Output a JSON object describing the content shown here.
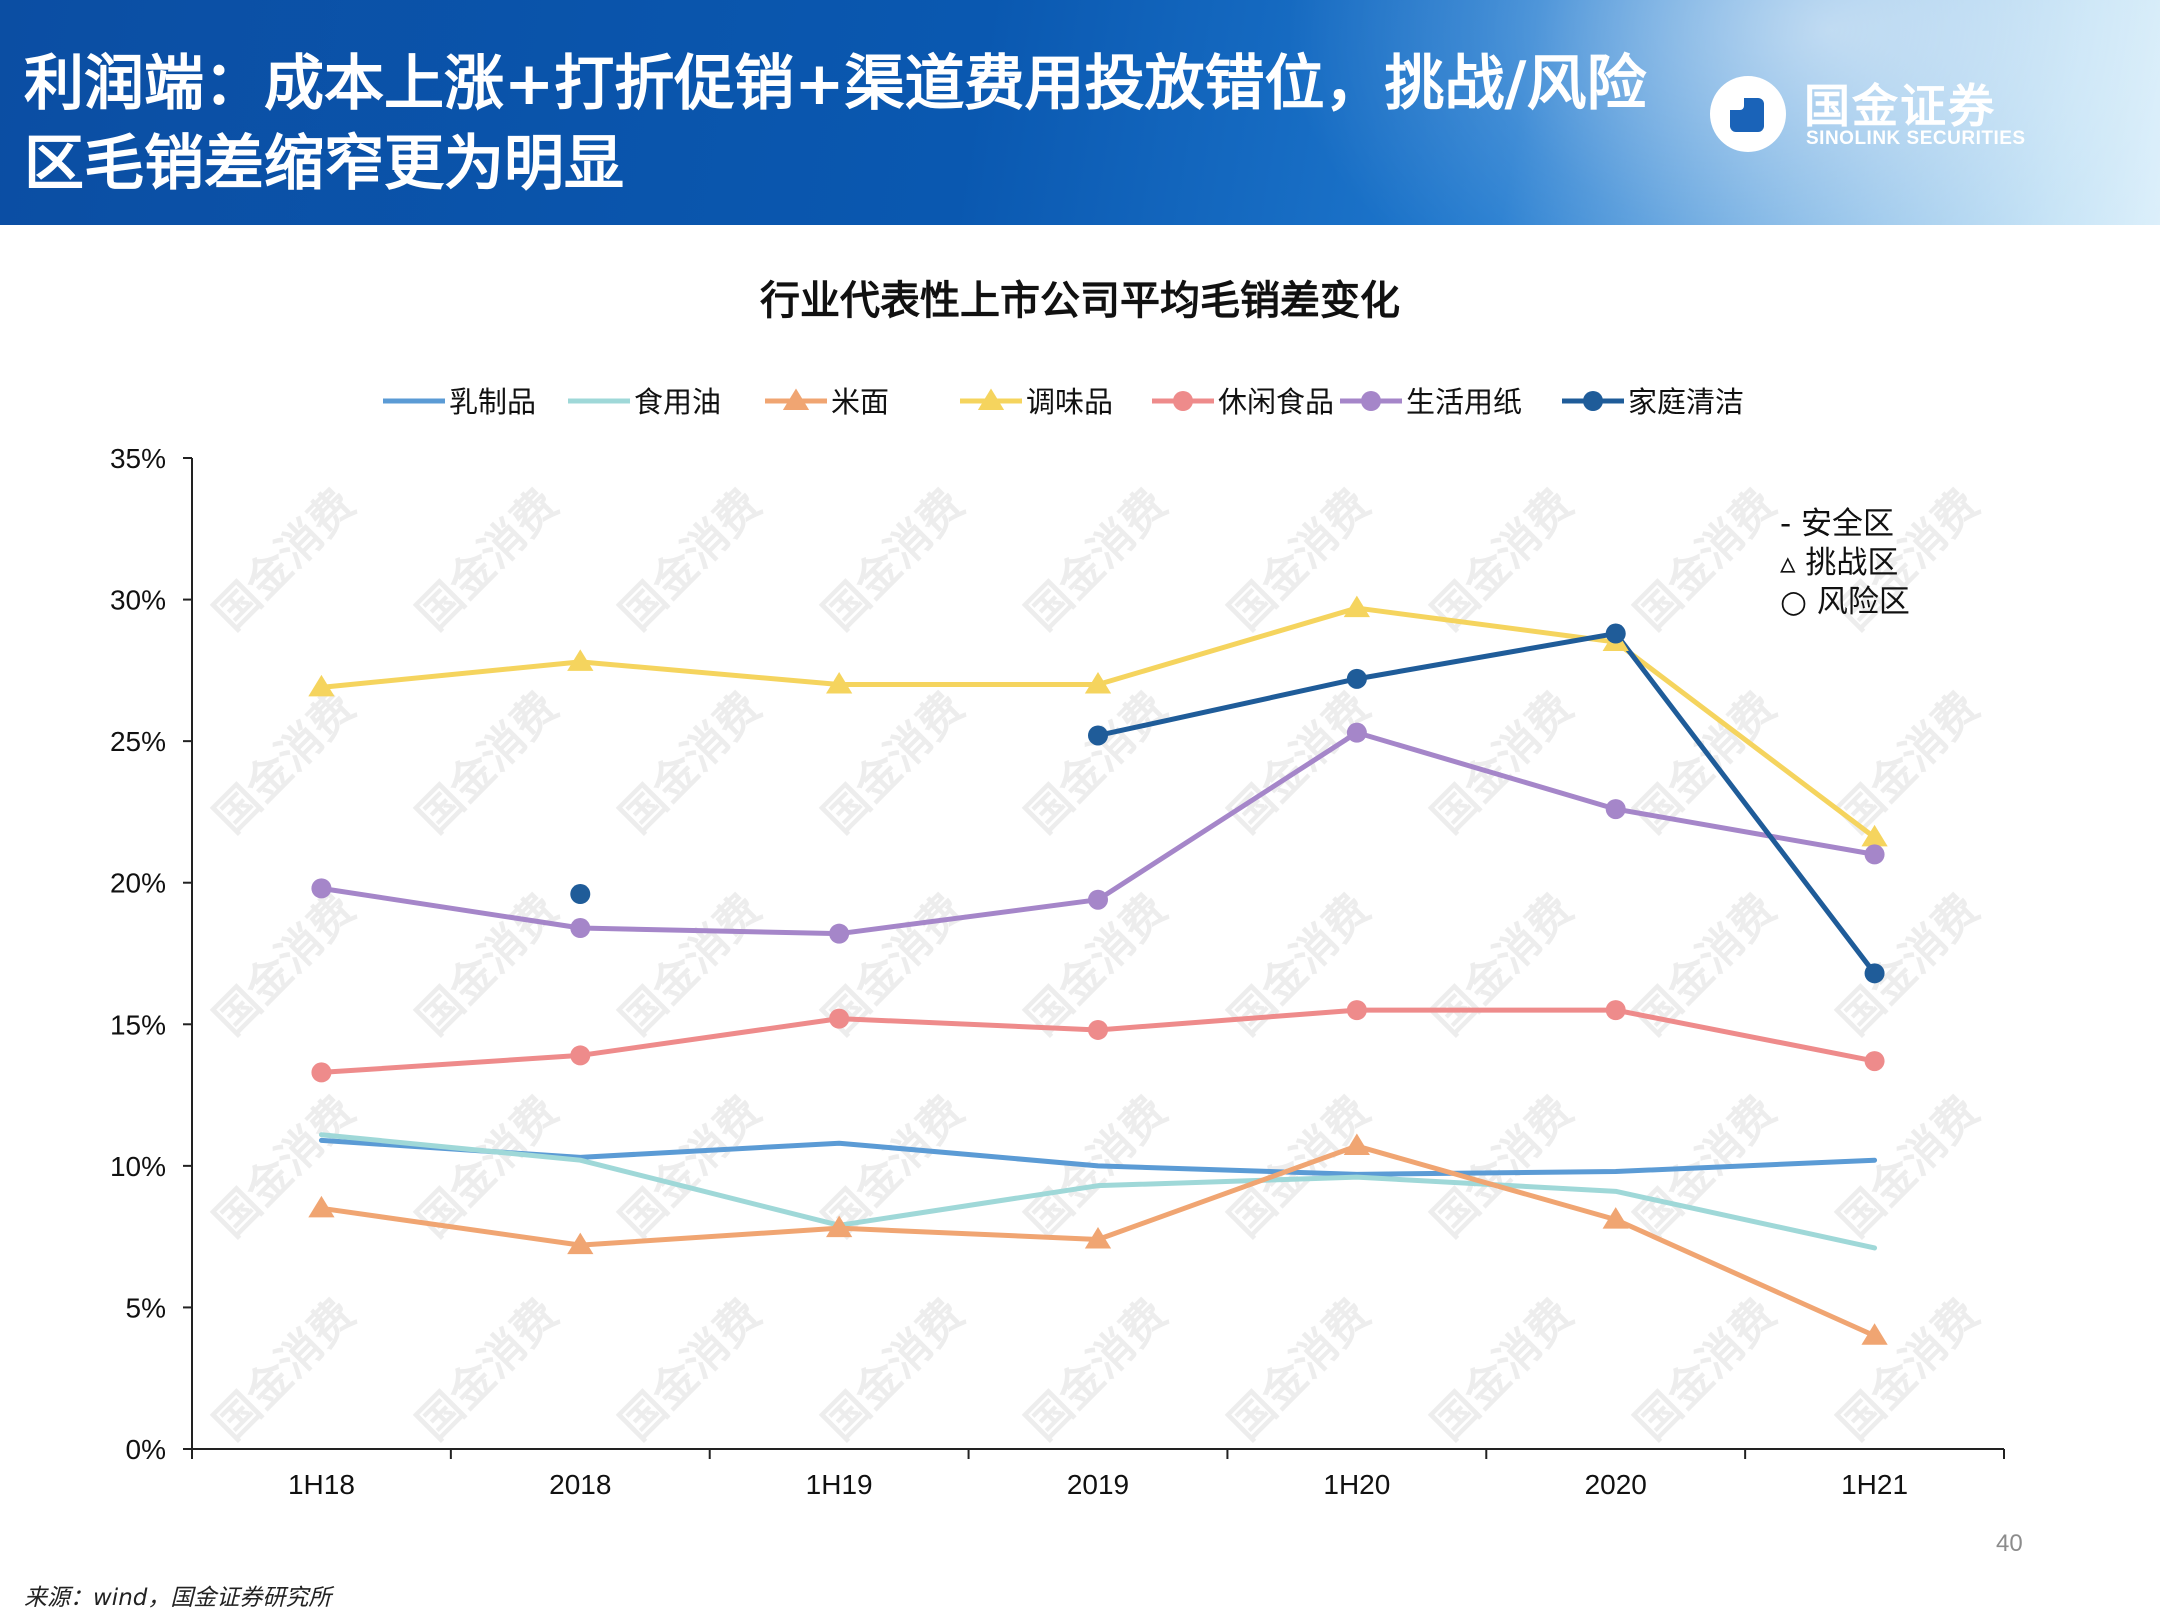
{
  "header": {
    "title": "利润端：成本上涨+打折促销+渠道费用投放错位，挑战/风险区毛销差缩窄更为明显",
    "logo_cn": "国金证券",
    "logo_en": "SINOLINK SECURITIES"
  },
  "watermark": "国金消费",
  "page_number": "40",
  "source": "来源：wind，国金证券研究所",
  "chart_data": {
    "type": "line",
    "title": "行业代表性上市公司平均毛销差变化",
    "categories": [
      "1H18",
      "2018",
      "1H19",
      "2019",
      "1H20",
      "2020",
      "1H21"
    ],
    "y_ticks": [
      "0%",
      "5%",
      "10%",
      "15%",
      "20%",
      "25%",
      "30%",
      "35%"
    ],
    "ylim": [
      0,
      35
    ],
    "grid": false,
    "legend_position": "top",
    "series": [
      {
        "name": "乳制品",
        "color": "#5b9bd5",
        "marker": "none",
        "values": [
          10.9,
          10.3,
          10.8,
          10.0,
          9.7,
          9.8,
          10.2
        ]
      },
      {
        "name": "食用油",
        "color": "#9fd8d8",
        "marker": "none",
        "values": [
          11.1,
          10.2,
          7.9,
          9.3,
          9.6,
          9.1,
          7.1
        ]
      },
      {
        "name": "米面",
        "color": "#f0a572",
        "marker": "triangle",
        "values": [
          8.5,
          7.2,
          7.8,
          7.4,
          10.7,
          8.1,
          4.0
        ]
      },
      {
        "name": "调味品",
        "color": "#f5d45e",
        "marker": "triangle",
        "values": [
          26.9,
          27.8,
          27.0,
          27.0,
          29.7,
          28.5,
          21.6
        ]
      },
      {
        "name": "休闲食品",
        "color": "#ee8b8b",
        "marker": "circle",
        "values": [
          13.3,
          13.9,
          15.2,
          14.8,
          15.5,
          15.5,
          13.7
        ]
      },
      {
        "name": "生活用纸",
        "color": "#a586c9",
        "marker": "circle",
        "values": [
          19.8,
          18.4,
          18.2,
          19.4,
          25.3,
          22.6,
          21.0
        ]
      },
      {
        "name": "家庭清洁",
        "color": "#1f5c99",
        "marker": "circle",
        "values": [
          null,
          19.6,
          null,
          25.2,
          27.2,
          28.8,
          16.8
        ]
      }
    ],
    "annotations": [
      "- 安全区",
      "▵ 挑战区",
      "○ 风险区"
    ]
  }
}
